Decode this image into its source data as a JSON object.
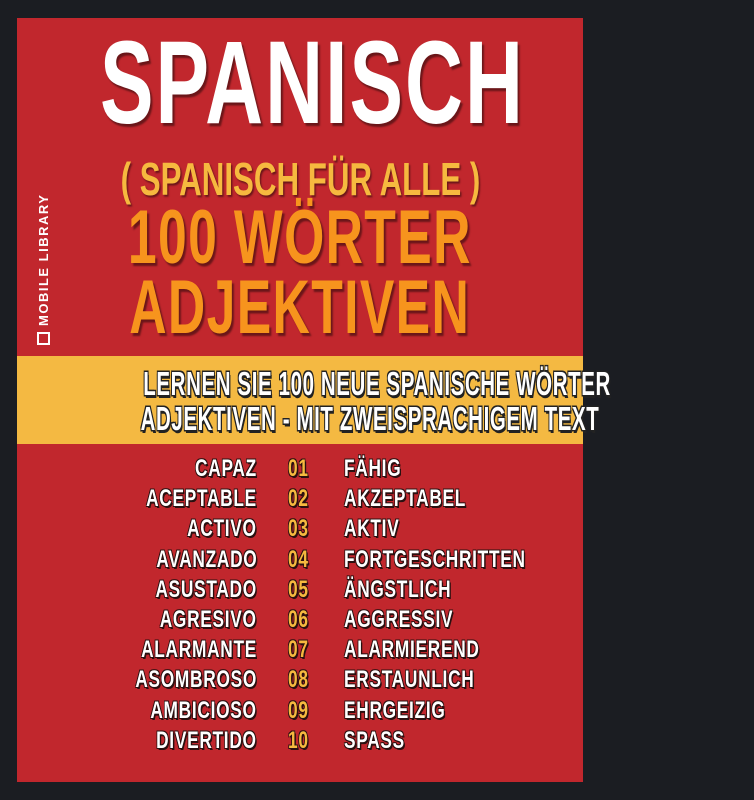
{
  "cover": {
    "title": "SPANISCH",
    "subtitle": "( SPANISCH FÜR ALLE )",
    "headline_1": "100 WÖRTER",
    "headline_2": "ADJEKTIVEN",
    "band_line_1": "LERNEN SIE 100 NEUE SPANISCHE WÖRTER",
    "band_line_2": "ADJEKTIVEN - MIT ZWEISPRACHIGEM TEXT",
    "publisher": "MOBILE LIBRARY",
    "colors": {
      "background": "#1b1d22",
      "panel": "#c1272d",
      "band": "#f4b942",
      "subtitle": "#f6b93f",
      "headline": "#f7941d"
    }
  },
  "words": [
    {
      "es": "CAPAZ",
      "num": "01",
      "de": "FÄHIG"
    },
    {
      "es": "ACEPTABLE",
      "num": "02",
      "de": "AKZEPTABEL"
    },
    {
      "es": "ACTIVO",
      "num": "03",
      "de": "AKTIV"
    },
    {
      "es": "AVANZADO",
      "num": "04",
      "de": "FORTGESCHRITTEN"
    },
    {
      "es": "ASUSTADO",
      "num": "05",
      "de": "ÄNGSTLICH"
    },
    {
      "es": "AGRESIVO",
      "num": "06",
      "de": "AGGRESSIV"
    },
    {
      "es": "ALARMANTE",
      "num": "07",
      "de": "ALARMIEREND"
    },
    {
      "es": "ASOMBROSO",
      "num": "08",
      "de": "ERSTAUNLICH"
    },
    {
      "es": "AMBICIOSO",
      "num": "09",
      "de": "EHRGEIZIG"
    },
    {
      "es": "DIVERTIDO",
      "num": "10",
      "de": "SPASS"
    }
  ]
}
